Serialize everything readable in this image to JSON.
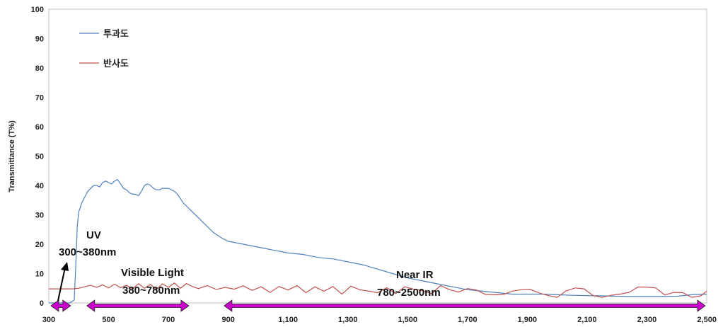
{
  "chart_data": {
    "type": "line",
    "title": "",
    "xlabel": "",
    "ylabel": "Transmittance (T%)",
    "xlim": [
      300,
      2500
    ],
    "ylim": [
      0,
      100
    ],
    "x_ticks": [
      300,
      500,
      700,
      900,
      1100,
      1300,
      1500,
      1700,
      1900,
      2100,
      2300,
      2500
    ],
    "x_tick_labels": [
      "300",
      "500",
      "700",
      "900",
      "1,100",
      "1,300",
      "1,500",
      "1,700",
      "1,900",
      "2,100",
      "2,300",
      "2,500"
    ],
    "y_ticks": [
      0,
      10,
      20,
      30,
      40,
      50,
      60,
      70,
      80,
      90,
      100
    ],
    "y_tick_labels": [
      "0",
      "10",
      "20",
      "30",
      "40",
      "50",
      "60",
      "70",
      "80",
      "90",
      "100"
    ],
    "grid": false,
    "legend_position": "top-left",
    "series": [
      {
        "name": "투과도",
        "color": "#4f81bd",
        "x": [
          300,
          370,
          385,
          390,
          395,
          400,
          410,
          420,
          430,
          440,
          450,
          460,
          470,
          480,
          490,
          500,
          510,
          520,
          530,
          540,
          550,
          560,
          570,
          580,
          590,
          600,
          610,
          620,
          630,
          640,
          650,
          660,
          670,
          680,
          690,
          700,
          710,
          720,
          730,
          740,
          750,
          760,
          770,
          780,
          800,
          820,
          850,
          880,
          900,
          950,
          1000,
          1050,
          1100,
          1150,
          1200,
          1250,
          1300,
          1350,
          1400,
          1450,
          1500,
          1550,
          1600,
          1650,
          1700,
          1750,
          1800,
          1850,
          1900,
          1950,
          2000,
          2050,
          2100,
          2150,
          2200,
          2250,
          2300,
          2350,
          2400,
          2450,
          2500
        ],
        "y": [
          0,
          0,
          1,
          12,
          26,
          31,
          34,
          36,
          38,
          39,
          40,
          40,
          39.5,
          41,
          41.5,
          41,
          40.5,
          41.5,
          42,
          40.5,
          39,
          38.5,
          37.5,
          37,
          37,
          36.5,
          38,
          40,
          40.5,
          40,
          39,
          38.5,
          38.5,
          39,
          39,
          39,
          38.5,
          38,
          37,
          35.5,
          34,
          33,
          32,
          31,
          29,
          27,
          24,
          22,
          21,
          20,
          19,
          18,
          17,
          16.5,
          15.5,
          15,
          14,
          13,
          11.5,
          10,
          8.5,
          7.5,
          6.5,
          5.5,
          4.5,
          4,
          3.5,
          3,
          3,
          3,
          2.8,
          2.6,
          2.5,
          2.4,
          2.3,
          2.2,
          2.2,
          2.2,
          2.3,
          2.8,
          3
        ]
      },
      {
        "name": "반사도",
        "color": "#c0504d",
        "x": [
          300,
          320,
          340,
          360,
          380,
          400,
          420,
          440,
          460,
          480,
          500,
          520,
          540,
          560,
          580,
          600,
          620,
          640,
          660,
          680,
          700,
          720,
          740,
          760,
          780,
          800,
          830,
          860,
          890,
          920,
          950,
          980,
          1010,
          1040,
          1070,
          1100,
          1130,
          1160,
          1190,
          1220,
          1250,
          1280,
          1310,
          1340,
          1370,
          1400,
          1430,
          1460,
          1490,
          1520,
          1550,
          1580,
          1610,
          1640,
          1670,
          1700,
          1730,
          1760,
          1790,
          1820,
          1850,
          1880,
          1910,
          1940,
          1970,
          2000,
          2030,
          2060,
          2090,
          2120,
          2150,
          2180,
          2210,
          2240,
          2270,
          2300,
          2330,
          2360,
          2390,
          2420,
          2450,
          2480,
          2500
        ],
        "y": [
          4.8,
          4.8,
          4.8,
          4.8,
          4.8,
          5,
          5.5,
          6,
          5.3,
          6.2,
          5.1,
          6.4,
          5.2,
          6,
          4.8,
          6.6,
          5,
          6.3,
          4.6,
          6.5,
          5.3,
          6.8,
          5,
          6.6,
          5.6,
          4.9,
          5.9,
          4.6,
          5.3,
          4.7,
          5.8,
          4.3,
          5.5,
          3.6,
          5.6,
          4.4,
          5.9,
          3.5,
          5.5,
          4,
          5.6,
          3,
          5.7,
          4.5,
          4,
          3.5,
          5.2,
          3.2,
          5.5,
          4.7,
          4.2,
          3.1,
          5.9,
          4.5,
          3.7,
          4.9,
          4.4,
          2.9,
          2.8,
          2.9,
          4,
          4.5,
          4.6,
          3.4,
          2.5,
          1.9,
          4.1,
          5.1,
          4.8,
          2.5,
          1.9,
          2.6,
          3,
          3.6,
          5.4,
          5.4,
          5.1,
          2.7,
          3.6,
          3.5,
          1.9,
          2.4,
          4
        ]
      }
    ],
    "annotations": {
      "uv_line1": "UV",
      "uv_line2": "300~380nm",
      "vis_line1": "Visible Light",
      "vis_line2": "380~780nm",
      "nir_line1": "Near IR",
      "nir_line2": "780~2500nm"
    },
    "band_color": "#cc00cc"
  }
}
